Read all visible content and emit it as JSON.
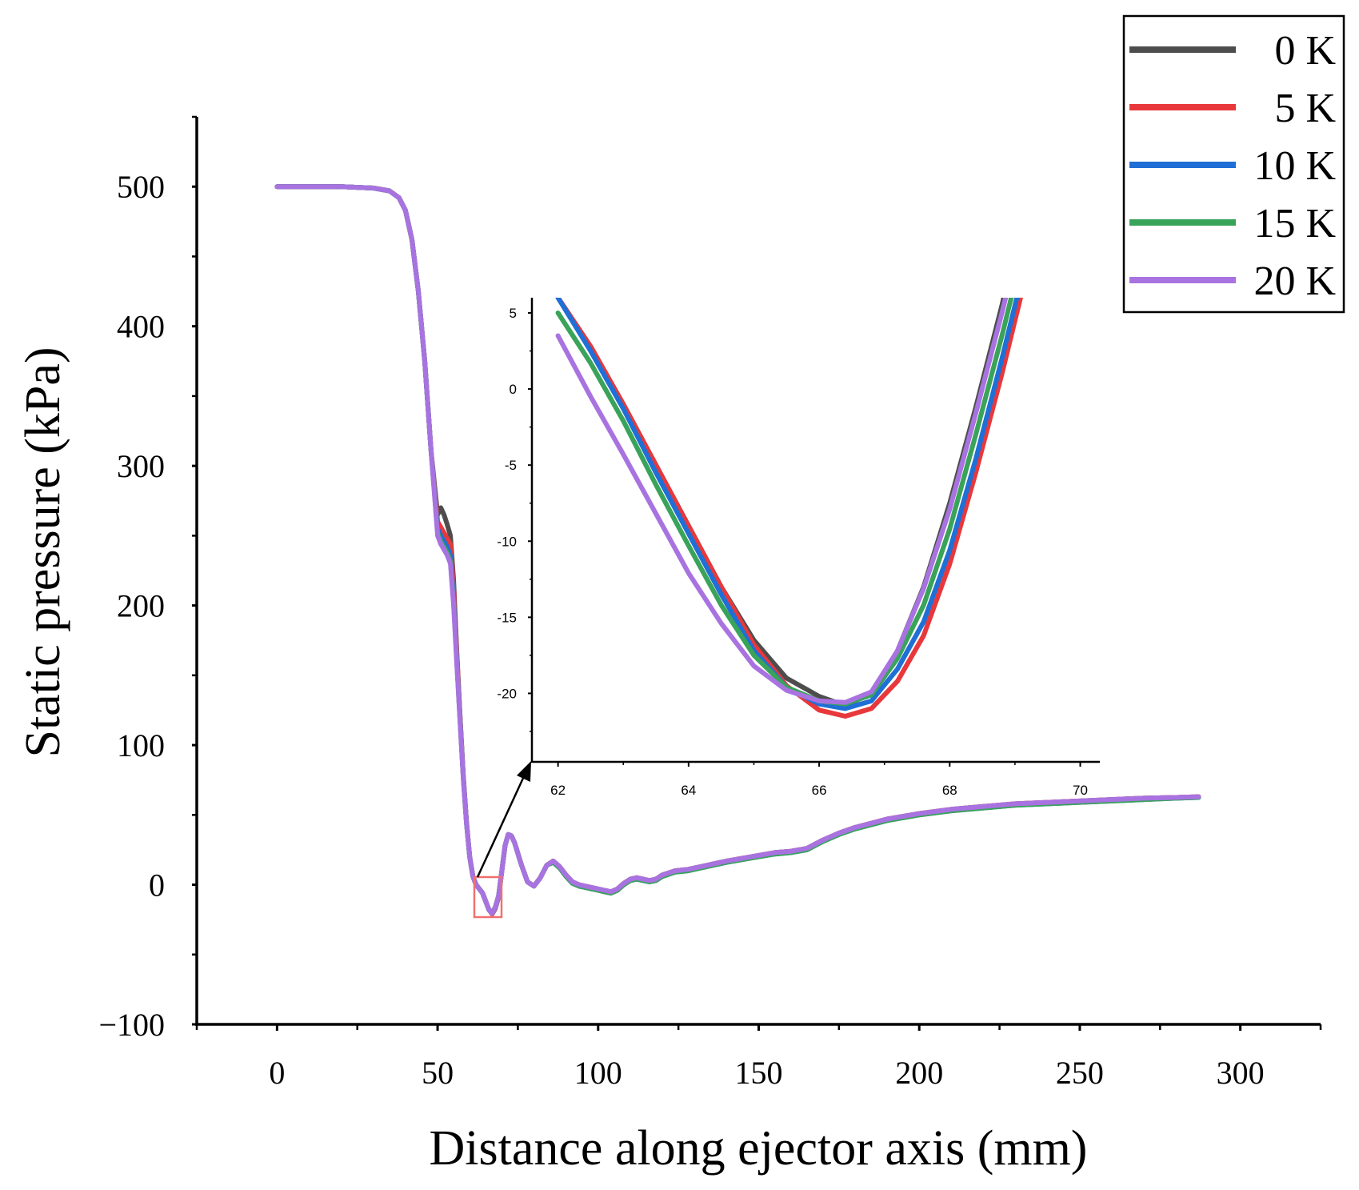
{
  "chart_data": [
    {
      "type": "line",
      "role": "main",
      "xlabel": "Distance along ejector axis (mm)",
      "ylabel": "Static pressure (kPa)",
      "xlim": [
        -25,
        325
      ],
      "ylim": [
        -100,
        550
      ],
      "xticks": [
        0,
        50,
        100,
        150,
        200,
        250,
        300
      ],
      "yticks": [
        -100,
        0,
        100,
        200,
        300,
        400,
        500
      ],
      "xtick_labels": [
        "0",
        "50",
        "100",
        "150",
        "200",
        "250",
        "300"
      ],
      "ytick_labels": [
        "−100",
        "0",
        "100",
        "200",
        "300",
        "400",
        "500"
      ],
      "grid": false,
      "legend_position": "top-right",
      "x": [
        0,
        10,
        20,
        30,
        35,
        38,
        40,
        42,
        44,
        46,
        48,
        50,
        51,
        52,
        53,
        54,
        55,
        56,
        57,
        58,
        59,
        60,
        61,
        62,
        63,
        64,
        65,
        66,
        67,
        68,
        69,
        70,
        71,
        72,
        73,
        74,
        76,
        78,
        80,
        82,
        84,
        86,
        88,
        90,
        92,
        94,
        96,
        98,
        100,
        102,
        104,
        106,
        108,
        110,
        112,
        114,
        116,
        118,
        120,
        124,
        128,
        132,
        136,
        140,
        145,
        150,
        155,
        160,
        165,
        170,
        175,
        180,
        190,
        200,
        210,
        220,
        230,
        240,
        250,
        260,
        270,
        280,
        287
      ],
      "series": [
        {
          "name": "0 K",
          "color": "#4d4d4d",
          "values": [
            500,
            500,
            500,
            499,
            497,
            492,
            483,
            462,
            425,
            375,
            310,
            265,
            270,
            265,
            258,
            250,
            218,
            165,
            120,
            78,
            45,
            20,
            6,
            0,
            -3,
            -6,
            -12,
            -18,
            -20,
            -16,
            -8,
            10,
            28,
            36,
            35,
            30,
            15,
            2,
            -1,
            5,
            14,
            17,
            13,
            7,
            2,
            0,
            -1,
            -2,
            -3,
            -4,
            -5,
            -3,
            1,
            4,
            5,
            4,
            3,
            4,
            7,
            10,
            11,
            13,
            15,
            17,
            19,
            21,
            23,
            24,
            26,
            32,
            37,
            41,
            47,
            51,
            54,
            56,
            58,
            59,
            60,
            61,
            62,
            62.5,
            63
          ]
        },
        {
          "name": "5 K",
          "color": "#e8383b",
          "values": [
            500,
            500,
            500,
            499,
            497,
            492,
            483,
            462,
            425,
            375,
            310,
            260,
            256,
            252,
            248,
            244,
            212,
            165,
            120,
            78,
            45,
            20,
            6,
            0,
            -3,
            -6,
            -12,
            -18,
            -21,
            -17,
            -9,
            10,
            28,
            36,
            35,
            30,
            15,
            2,
            -1,
            5,
            14,
            17,
            13,
            7,
            2,
            0,
            -1,
            -2,
            -4,
            -5,
            -6,
            -3,
            1,
            4,
            5,
            4,
            3,
            4,
            7,
            10,
            11,
            13,
            15,
            17,
            19,
            21,
            23,
            24,
            26,
            32,
            37,
            41,
            47,
            51,
            54,
            56,
            58,
            59,
            60,
            61,
            62,
            62.5,
            63
          ]
        },
        {
          "name": "10 K",
          "color": "#1f6fd6",
          "values": [
            500,
            500,
            500,
            499,
            497,
            492,
            483,
            462,
            425,
            375,
            310,
            255,
            250,
            246,
            242,
            236,
            205,
            160,
            118,
            77,
            44,
            20,
            6,
            0,
            -3,
            -6,
            -12,
            -18,
            -20.5,
            -16.5,
            -8.5,
            10,
            28,
            36,
            35,
            30,
            15,
            2,
            -1,
            5,
            14,
            16,
            12,
            6,
            1,
            -1,
            -2,
            -3,
            -4,
            -5,
            -6,
            -4,
            0,
            3,
            4,
            3,
            2,
            3,
            6,
            9,
            10,
            12,
            14,
            16,
            18,
            20,
            22,
            23,
            25,
            31,
            36,
            40,
            46,
            50,
            53,
            55,
            57,
            58,
            59,
            60,
            61,
            62,
            62.5
          ]
        },
        {
          "name": "15 K",
          "color": "#3aa35a",
          "values": [
            500,
            500,
            500,
            499,
            497,
            492,
            483,
            462,
            425,
            375,
            310,
            252,
            246,
            242,
            238,
            232,
            202,
            158,
            117,
            76,
            44,
            20,
            6,
            0,
            -3,
            -6,
            -12,
            -18,
            -20.5,
            -16,
            -8,
            10,
            28,
            36,
            35,
            30,
            15,
            2,
            -1,
            5,
            14,
            16,
            12,
            6,
            1,
            -1,
            -2,
            -3,
            -4,
            -5,
            -6,
            -4,
            0,
            3,
            4,
            3,
            2,
            3,
            6,
            9,
            10,
            12,
            14,
            16,
            18,
            20,
            22,
            23,
            25,
            31,
            36,
            40,
            46,
            50,
            53,
            55,
            57,
            58,
            59,
            60,
            61,
            62,
            62.5
          ]
        },
        {
          "name": "20 K",
          "color": "#a873e0",
          "values": [
            500,
            500,
            500,
            499,
            497,
            492,
            483,
            462,
            425,
            375,
            310,
            250,
            244,
            240,
            236,
            230,
            200,
            157,
            116,
            76,
            44,
            20,
            6,
            0,
            -3,
            -6,
            -12,
            -18,
            -20.5,
            -16,
            -8,
            10,
            28,
            36,
            35,
            30,
            15,
            2,
            -1,
            5,
            14,
            17,
            13,
            7,
            2,
            0,
            -1,
            -2,
            -3,
            -4,
            -5,
            -3,
            1,
            4,
            5,
            4,
            3,
            4,
            7,
            10,
            11,
            13,
            15,
            17,
            19,
            21,
            23,
            24,
            26,
            32,
            37,
            41,
            47,
            51,
            54,
            56,
            58,
            59,
            60,
            61,
            62,
            62.5,
            63
          ]
        }
      ]
    },
    {
      "type": "line",
      "role": "inset",
      "xlim": [
        61.6,
        70.3
      ],
      "ylim": [
        -24.5,
        6
      ],
      "xticks": [
        62,
        64,
        66,
        68,
        70
      ],
      "yticks": [
        -20,
        -15,
        -10,
        -5,
        0,
        5
      ],
      "xtick_labels": [
        "62",
        "64",
        "66",
        "68",
        "70"
      ],
      "ytick_labels": [
        "-20",
        "-15",
        "-10",
        "-5",
        "0",
        "5"
      ],
      "grid": false,
      "x": [
        62,
        62.5,
        63,
        63.5,
        64,
        64.5,
        65,
        65.5,
        66,
        66.4,
        66.8,
        67.2,
        67.6,
        68,
        68.4,
        68.8,
        69.2
      ],
      "series": [
        {
          "name": "0 K",
          "color": "#4d4d4d",
          "values": [
            6,
            2.8,
            -1,
            -5,
            -9,
            -13,
            -16.5,
            -19,
            -20.2,
            -20.8,
            -20,
            -17.2,
            -13,
            -7.5,
            -1.2,
            5.5,
            13
          ]
        },
        {
          "name": "5 K",
          "color": "#e8383b",
          "values": [
            6,
            2.8,
            -1,
            -5,
            -9,
            -13,
            -16.8,
            -19.5,
            -21.1,
            -21.5,
            -21,
            -19.2,
            -16.2,
            -11.5,
            -5.5,
            1,
            8
          ]
        },
        {
          "name": "10 K",
          "color": "#1f6fd6",
          "values": [
            6,
            2.5,
            -1.3,
            -5.5,
            -9.5,
            -13.5,
            -17.2,
            -19.6,
            -20.7,
            -21,
            -20.5,
            -18.4,
            -15.3,
            -10.6,
            -4.6,
            2,
            9
          ]
        },
        {
          "name": "15 K",
          "color": "#3aa35a",
          "values": [
            5,
            1.7,
            -2.1,
            -6.3,
            -10.3,
            -14.2,
            -17.5,
            -19.6,
            -20.5,
            -20.7,
            -20.1,
            -17.7,
            -14.2,
            -9.2,
            -3,
            3.5,
            10.5
          ]
        },
        {
          "name": "20 K",
          "color": "#a873e0",
          "values": [
            3.5,
            -0.5,
            -4.3,
            -8.2,
            -12.1,
            -15.4,
            -18.2,
            -19.8,
            -20.5,
            -20.6,
            -19.9,
            -17.2,
            -13.1,
            -7.9,
            -1.6,
            5,
            12
          ]
        }
      ]
    }
  ]
}
